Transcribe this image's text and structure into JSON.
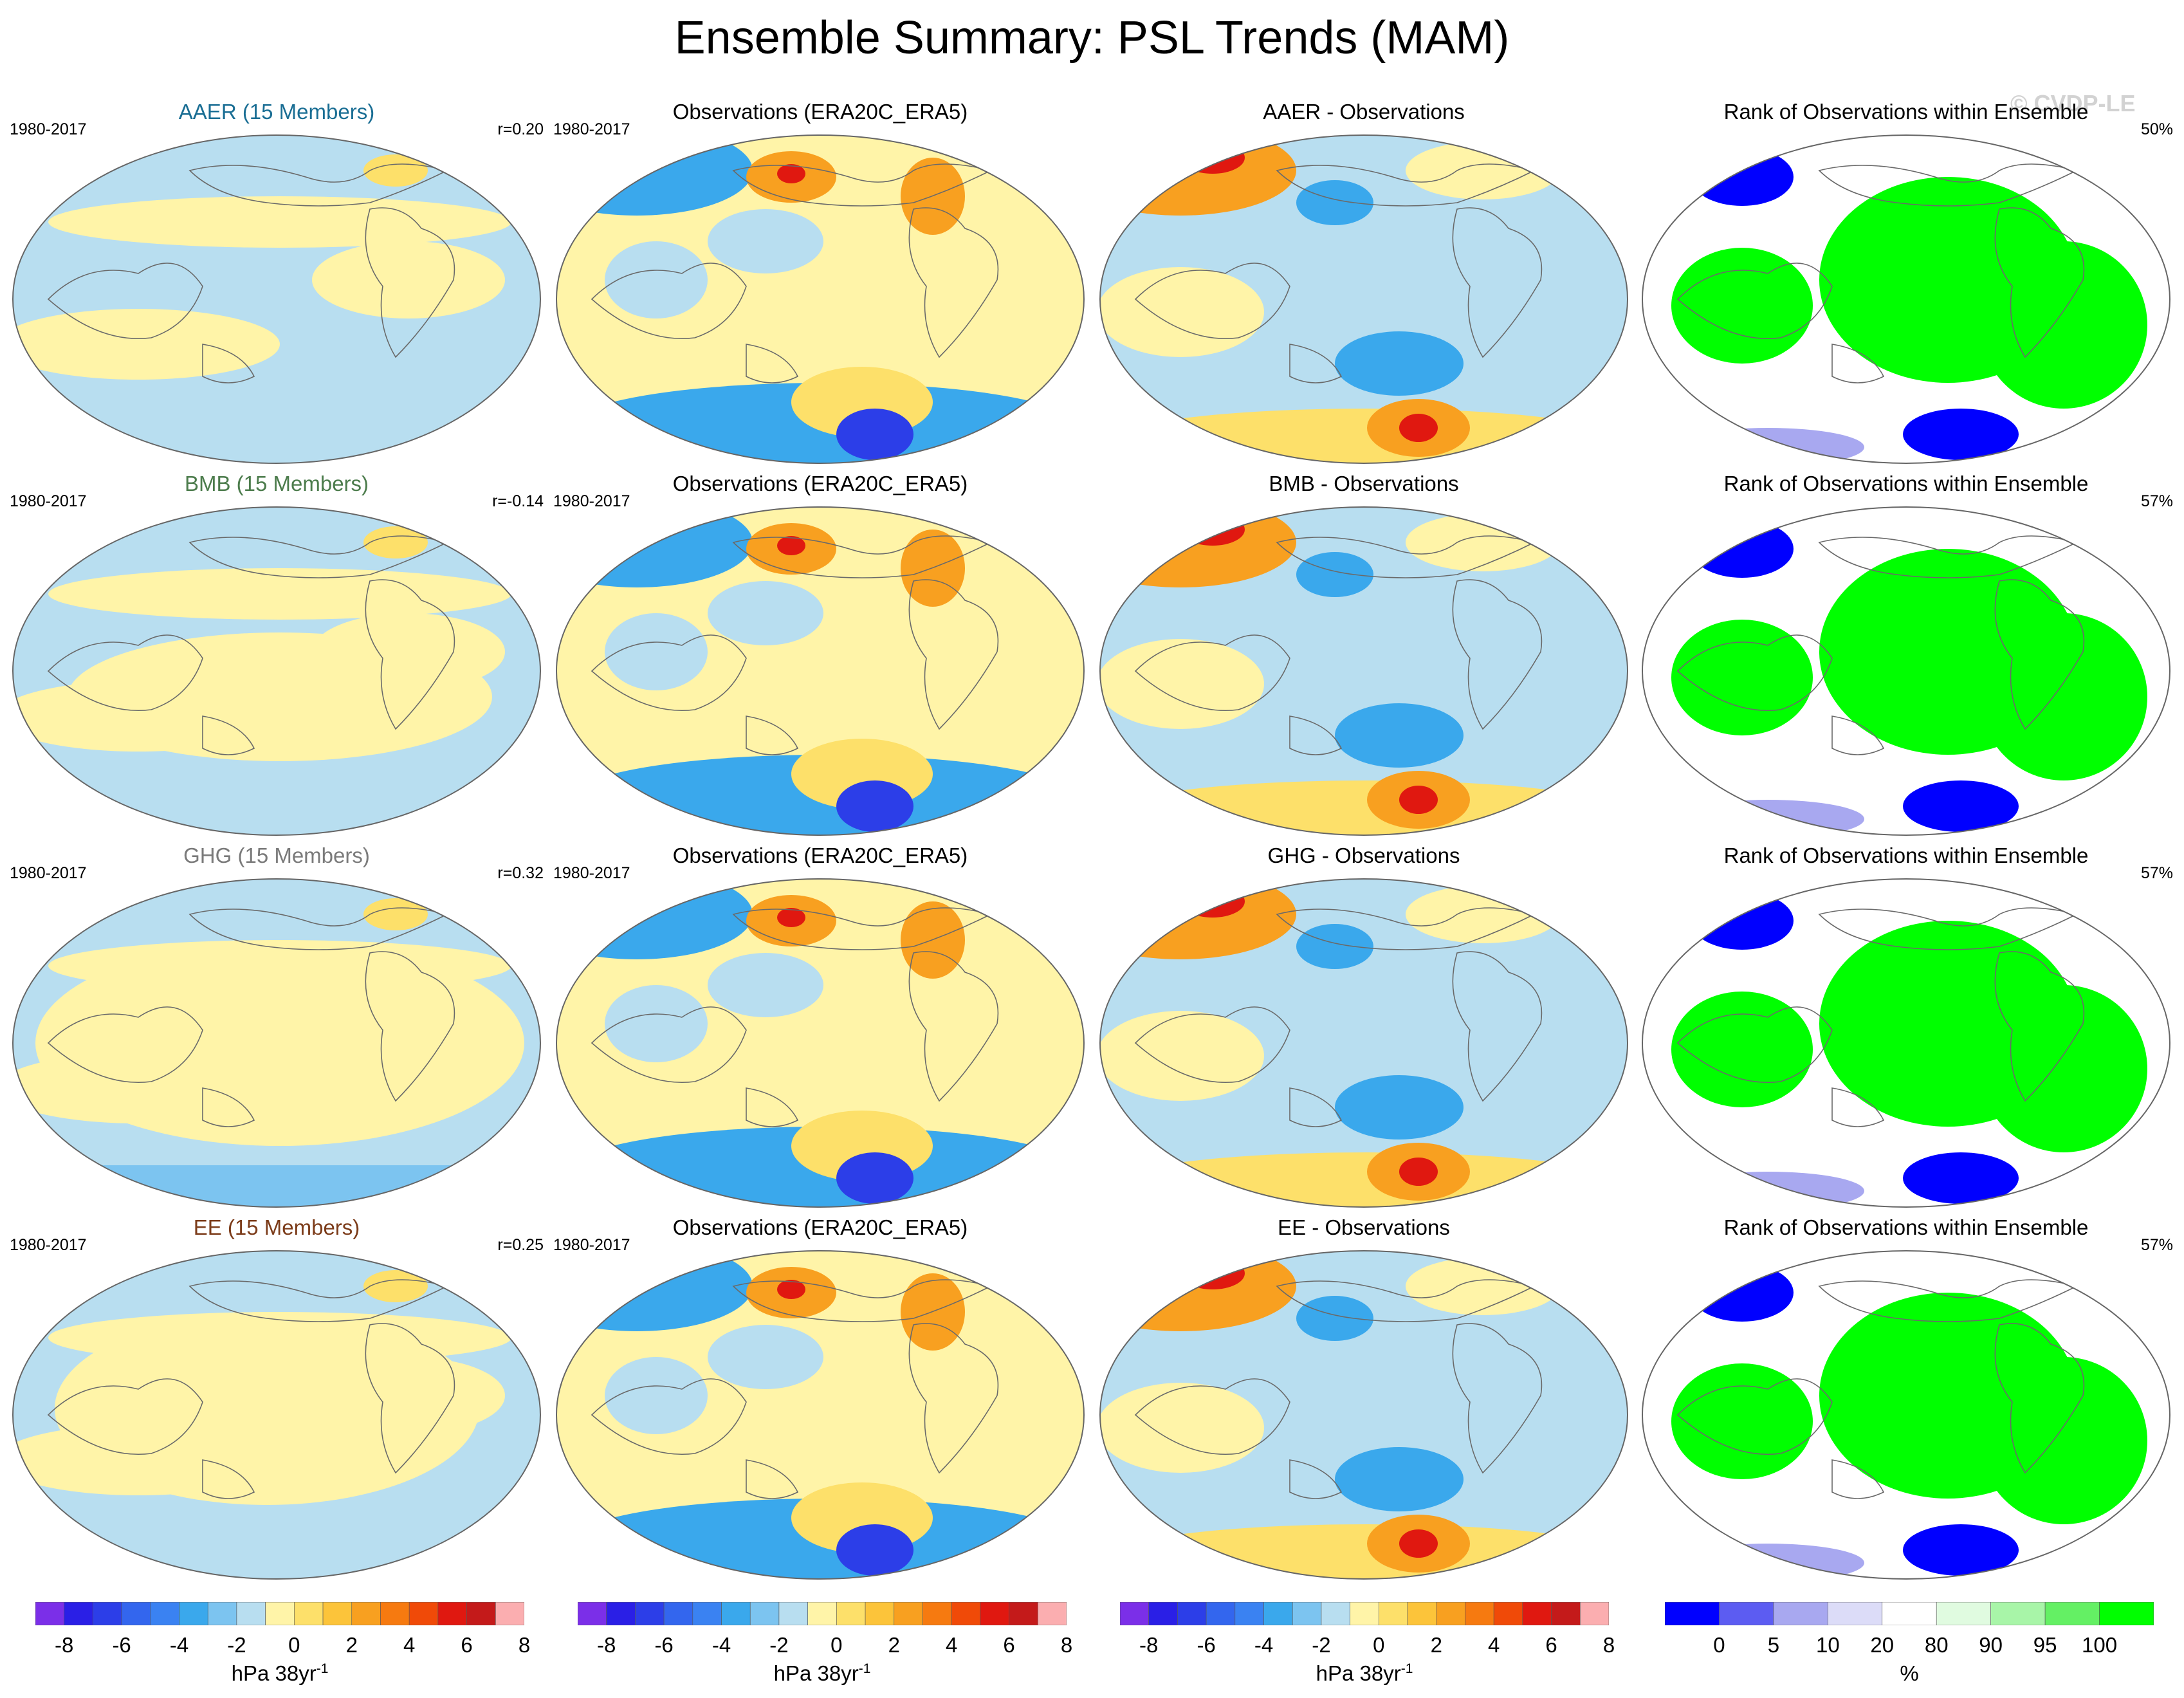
{
  "title": "Ensemble Summary: PSL Trends (MAM)",
  "watermark": "© CVDP-LE",
  "period": "1980-2017",
  "rows": [
    {
      "ensemble": {
        "title": "AAER (15 Members)",
        "title_color": "#1a6e94",
        "corner": "r=0.20"
      },
      "obs": {
        "title": "Observations (ERA20C_ERA5)"
      },
      "diff": {
        "title": "AAER - Observations"
      },
      "rank": {
        "title": "Rank of Observations within Ensemble",
        "corner": "50%"
      }
    },
    {
      "ensemble": {
        "title": "BMB (15 Members)",
        "title_color": "#4c7c4c",
        "corner": "r=-0.14"
      },
      "obs": {
        "title": "Observations (ERA20C_ERA5)"
      },
      "diff": {
        "title": "BMB - Observations"
      },
      "rank": {
        "title": "Rank of Observations within Ensemble",
        "corner": "57%"
      }
    },
    {
      "ensemble": {
        "title": "GHG (15 Members)",
        "title_color": "#7a7a7a",
        "corner": "r=0.32"
      },
      "obs": {
        "title": "Observations (ERA20C_ERA5)"
      },
      "diff": {
        "title": "GHG - Observations"
      },
      "rank": {
        "title": "Rank of Observations within Ensemble",
        "corner": "57%"
      }
    },
    {
      "ensemble": {
        "title": "EE (15 Members)",
        "title_color": "#7c3c1a",
        "corner": "r=0.25"
      },
      "obs": {
        "title": "Observations (ERA20C_ERA5)"
      },
      "diff": {
        "title": "EE - Observations"
      },
      "rank": {
        "title": "Rank of Observations within Ensemble",
        "corner": "57%"
      }
    }
  ],
  "trend_colorbar": {
    "units": "hPa 38yr",
    "units_exp": "-1",
    "ticks": [
      "-8",
      "-6",
      "-4",
      "-2",
      "0",
      "2",
      "4",
      "6",
      "8"
    ],
    "colors": [
      "#7b2fe8",
      "#2a1fe6",
      "#2c3ee8",
      "#3366ee",
      "#3a82f2",
      "#3aa8ec",
      "#7cc4f0",
      "#b8def0",
      "#fff4a8",
      "#fde06a",
      "#fcc43a",
      "#f8a020",
      "#f67a10",
      "#f04a08",
      "#e01810",
      "#c41a1a",
      "#fbaeb0"
    ]
  },
  "rank_colorbar": {
    "units": "%",
    "ticks": [
      "0",
      "5",
      "10",
      "20",
      "80",
      "90",
      "95",
      "100"
    ],
    "colors": [
      "#0000ff",
      "#5c5cf2",
      "#a8a8f0",
      "#dcdcf8",
      "#ffffff",
      "#e0fbe0",
      "#a8f5a8",
      "#64f064",
      "#00ff00"
    ]
  },
  "map_colors": {
    "light_blue": "#b8def0",
    "mid_blue": "#7cc4f0",
    "blue": "#3aa8ec",
    "deep_blue": "#2c3ee8",
    "light_yellow": "#fff4a8",
    "yellow": "#fde06a",
    "orange": "#f8a020",
    "red": "#e01810",
    "rank_green": "#00ff00",
    "rank_blue": "#0000ff",
    "rank_lightblue": "#a8a8f0"
  }
}
